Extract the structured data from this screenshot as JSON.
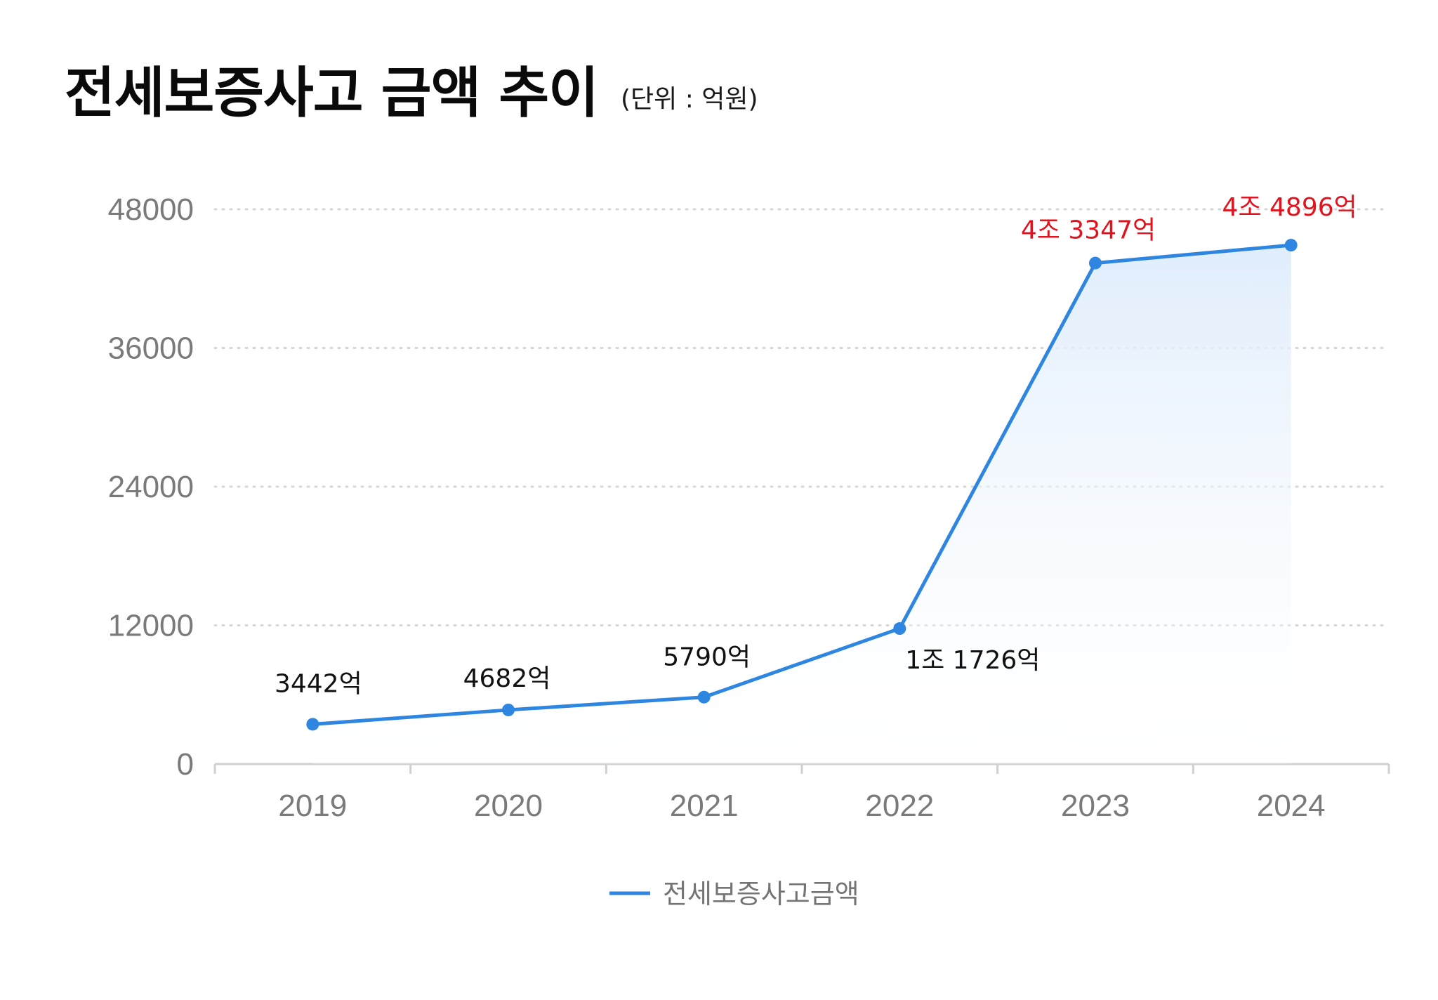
{
  "title": "전세보증사고 금액 추이",
  "unit_note": "(단위 : 억원)",
  "colors": {
    "line": "#2f86e0",
    "area_top": "#dcebfb",
    "grid": "#d6d6d6",
    "axis": "#d0d0d0",
    "tick_text": "#7a7a7a",
    "label_normal": "#111111",
    "label_highlight": "#e0141e"
  },
  "chart_data": {
    "type": "area",
    "categories": [
      "2019",
      "2020",
      "2021",
      "2022",
      "2023",
      "2024"
    ],
    "series": [
      {
        "name": "전세보증사고금액",
        "values": [
          3442,
          4682,
          5790,
          11726,
          43347,
          44896
        ],
        "data_labels": [
          "3442억",
          "4682억",
          "5790억",
          "1조 1726억",
          "4조 3347억",
          "4조 4896억"
        ],
        "highlighted": [
          false,
          false,
          false,
          false,
          true,
          true
        ]
      }
    ],
    "y_ticks": [
      0,
      12000,
      24000,
      36000,
      48000
    ],
    "ylim": [
      0,
      48000
    ],
    "grid": "horizontal dotted",
    "legend": "bottom-center"
  }
}
